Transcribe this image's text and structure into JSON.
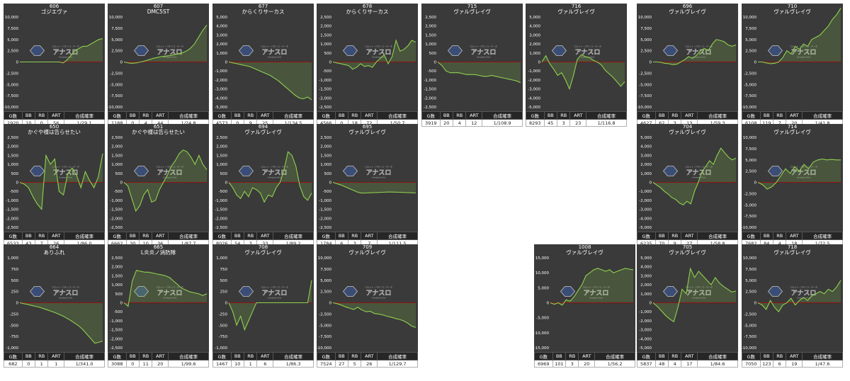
{
  "stats_header": [
    "G数",
    "BB",
    "RB",
    "ART",
    "合成確率"
  ],
  "colors": {
    "line": "#8fd14f",
    "fill": "rgba(143,209,79,0.18)",
    "zero": "#b00000",
    "panel": "#3a3a3a"
  },
  "watermark": {
    "top": "スロット・パチンコ・データ",
    "main": "アナスロ",
    "sub": "Analysis Slot"
  },
  "chart_data": [
    {
      "type": "line",
      "machine_no": "606",
      "title": "ゴジエヴァ",
      "yticks": [
        "10,000",
        "7,500",
        "5,000",
        "2,500",
        "0",
        "-2,500",
        "-5,000",
        "-7,500",
        "-10,000"
      ],
      "ylim": [
        -10000,
        10000
      ],
      "values": [
        0,
        0,
        0,
        0,
        0,
        0,
        0,
        0,
        0,
        0,
        0,
        -200,
        500,
        1500,
        2500,
        3000,
        3500,
        3500,
        4000,
        4500,
        5000,
        5200
      ],
      "stats": {
        "g": "1920",
        "bb": "10",
        "rb": "0",
        "art": "56",
        "rate": "1/29.1"
      }
    },
    {
      "type": "line",
      "machine_no": "607",
      "title": "DMC5ST",
      "yticks": [
        "10,000",
        "7,500",
        "5,000",
        "2,500",
        "0",
        "-2,500",
        "-5,000",
        "-7,500",
        "-10,000"
      ],
      "ylim": [
        -10000,
        10000
      ],
      "values": [
        0,
        -200,
        -300,
        -200,
        0,
        200,
        500,
        800,
        1000,
        1200,
        1300,
        1400,
        1600,
        1800,
        2000,
        2400,
        3000,
        4000,
        5500,
        7000,
        8200
      ],
      "stats": {
        "g": "1188",
        "bb": "0",
        "rb": "4",
        "art": "44",
        "rate": "1/24.8"
      }
    },
    {
      "type": "line",
      "machine_no": "677",
      "title": "からくりサーカス",
      "yticks": [
        "5,000",
        "4,000",
        "3,000",
        "2,000",
        "1,000",
        "0",
        "-1,000",
        "-2,000",
        "-3,000",
        "-4,000",
        "-5,000"
      ],
      "ylim": [
        -5000,
        5000
      ],
      "values": [
        0,
        -100,
        -200,
        -300,
        -400,
        -500,
        -700,
        -900,
        -1100,
        -1300,
        -1500,
        -1800,
        -2100,
        -2500,
        -2900,
        -3300,
        -3700,
        -4000,
        -4100,
        -3900,
        -4200
      ],
      "stats": {
        "g": "4573",
        "bb": "0",
        "rb": "9",
        "art": "25",
        "rate": "1/134.5"
      }
    },
    {
      "type": "line",
      "machine_no": "678",
      "title": "からくりサーカス",
      "yticks": [
        "2,500",
        "2,000",
        "1,500",
        "1,000",
        "500",
        "0",
        "-500",
        "-1,000",
        "-1,500",
        "-2,000",
        "-2,500"
      ],
      "ylim": [
        -2500,
        2500
      ],
      "values": [
        0,
        -50,
        -100,
        -150,
        -200,
        -400,
        -300,
        -100,
        -250,
        -200,
        -300,
        0,
        200,
        400,
        -100,
        300,
        1200,
        600,
        700,
        900,
        1200,
        1100
      ],
      "stats": {
        "g": "4566",
        "bb": "0",
        "rb": "18",
        "art": "72",
        "rate": "1/50.7"
      }
    },
    {
      "type": "line",
      "machine_no": "715",
      "title": "ヴァルヴレイヴ",
      "yticks": [
        "2,500",
        "2,000",
        "1,500",
        "1,000",
        "500",
        "0",
        "-500",
        "-1,000",
        "-1,500",
        "-2,000",
        "-2,500"
      ],
      "ylim": [
        -2500,
        2500
      ],
      "values": [
        0,
        -200,
        -500,
        -600,
        -600,
        -600,
        -650,
        -700,
        -700,
        -700,
        -750,
        -800,
        -800,
        -750,
        -800,
        -850,
        -900,
        -950,
        -1000,
        -1050,
        -1150
      ],
      "stats": {
        "g": "3919",
        "bb": "20",
        "rb": "4",
        "art": "12",
        "rate": "1/108.9"
      }
    },
    {
      "type": "line",
      "machine_no": "716",
      "title": "ヴァルヴレイヴ",
      "yticks": [
        "5,000",
        "4,000",
        "3,000",
        "2,000",
        "1,000",
        "0",
        "-1,000",
        "-2,000",
        "-3,000",
        "-4,000",
        "-5,000"
      ],
      "ylim": [
        -5000,
        5000
      ],
      "values": [
        0,
        700,
        -200,
        -800,
        -1500,
        -1200,
        -2000,
        -3000,
        -1500,
        300,
        800,
        600,
        500,
        200,
        0,
        -300,
        -900,
        -1300,
        -1700,
        -2200,
        -2700,
        -2200
      ],
      "stats": {
        "g": "8293",
        "bb": "45",
        "rb": "3",
        "art": "23",
        "rate": "1/116.8"
      }
    },
    {
      "type": "line",
      "machine_no": "696",
      "title": "ヴァルヴレイヴ",
      "yticks": [
        "10,000",
        "7,500",
        "5,000",
        "2,500",
        "0",
        "-2,500",
        "-5,000",
        "-7,500",
        "-10,000"
      ],
      "ylim": [
        -10000,
        10000
      ],
      "values": [
        0,
        0,
        -100,
        -300,
        -400,
        -600,
        -500,
        0,
        500,
        1200,
        800,
        1500,
        2500,
        3000,
        2500,
        4000,
        5000,
        4800,
        4500,
        3800,
        3500,
        3800
      ],
      "stats": {
        "g": "4627",
        "bb": "62",
        "rb": "3",
        "art": "13",
        "rate": "1/59.3"
      }
    },
    {
      "type": "line",
      "machine_no": "710",
      "title": "ヴァルヴレイヴ",
      "yticks": [
        "10,000",
        "7,500",
        "5,000",
        "2,500",
        "0",
        "-2,500",
        "-5,000",
        "-7,500",
        "-10,000"
      ],
      "ylim": [
        -10000,
        10000
      ],
      "values": [
        0,
        0,
        -200,
        -400,
        -300,
        0,
        1000,
        2500,
        1800,
        3500,
        2800,
        4000,
        3500,
        5000,
        5500,
        6000,
        7000,
        8000,
        9500,
        10500,
        12000
      ],
      "stats": {
        "g": "6108",
        "bb": "119",
        "rb": "7",
        "art": "20",
        "rate": "1/41.8"
      }
    },
    {
      "type": "line",
      "machine_no": "650",
      "title": "かぐや様は告らせたい",
      "yticks": [
        "2,500",
        "2,000",
        "1,500",
        "1,000",
        "500",
        "0",
        "-500",
        "-1,000",
        "-1,500",
        "-2,000",
        "-2,500"
      ],
      "ylim": [
        -2500,
        2500
      ],
      "values": [
        0,
        -100,
        -300,
        -800,
        -1200,
        -1500,
        1500,
        1000,
        1300,
        -500,
        -700,
        500,
        800,
        400,
        -300,
        600,
        100,
        -300,
        300,
        1600
      ],
      "stats": {
        "g": "6533",
        "bb": "43",
        "rb": "7",
        "art": "26",
        "rate": "1/86.0"
      }
    },
    {
      "type": "line",
      "machine_no": "651",
      "title": "かぐや様は告らせたい",
      "yticks": [
        "2,500",
        "2,000",
        "1,500",
        "1,000",
        "500",
        "0",
        "-500",
        "-1,000",
        "-1,500",
        "-2,000",
        "-2,500"
      ],
      "ylim": [
        -2500,
        2500
      ],
      "values": [
        0,
        -200,
        -900,
        -1600,
        -1300,
        -700,
        -400,
        -1100,
        -1000,
        -400,
        0,
        400,
        900,
        1200,
        1600,
        1800,
        1700,
        1400,
        1000,
        1500,
        1000,
        700
      ],
      "stats": {
        "g": "6662",
        "bb": "30",
        "rb": "10",
        "art": "36",
        "rate": "1/87.7"
      }
    },
    {
      "type": "line",
      "machine_no": "694",
      "title": "ヴァルヴレイヴ",
      "yticks": [
        "2,500",
        "2,000",
        "1,500",
        "1,000",
        "500",
        "0",
        "-500",
        "-1,000",
        "-1,500",
        "-2,000",
        "-2,500"
      ],
      "ylim": [
        -2500,
        2500
      ],
      "values": [
        0,
        -300,
        -700,
        -900,
        -500,
        -800,
        -300,
        -400,
        -600,
        -1100,
        -700,
        -800,
        -300,
        0,
        700,
        1700,
        1500,
        900,
        -200,
        -800,
        -1000,
        -600
      ],
      "stats": {
        "g": "8026",
        "bb": "54",
        "rb": "3",
        "art": "33",
        "rate": "1/89.2"
      }
    },
    {
      "type": "line",
      "machine_no": "695",
      "title": "ヴァルヴレイヴ",
      "yticks": [
        "2,500",
        "2,000",
        "1,500",
        "1,000",
        "500",
        "0",
        "-500",
        "-1,000",
        "-1,500",
        "-2,000",
        "-2,500"
      ],
      "ylim": [
        -2500,
        2500
      ],
      "values": [
        0,
        -80,
        -150,
        -250,
        -350,
        -450,
        -550,
        -600,
        -590,
        -580,
        -570,
        -560,
        -550,
        -540,
        -540,
        -545,
        -550,
        -560,
        -570,
        -580,
        -590
      ],
      "stats": {
        "g": "1784",
        "bb": "6",
        "rb": "3",
        "art": "7",
        "rate": "1/111.5"
      }
    },
    {
      "type": "line",
      "machine_no": "704",
      "title": "ヴァルヴレイヴ",
      "yticks": [
        "5,000",
        "4,000",
        "3,000",
        "2,000",
        "1,000",
        "0",
        "-1,000",
        "-2,000",
        "-3,000",
        "-4,000",
        "-5,000"
      ],
      "ylim": [
        -5000,
        5000
      ],
      "values": [
        0,
        -300,
        -600,
        -1000,
        -1300,
        -1700,
        -1900,
        -2300,
        -2500,
        -2100,
        -2400,
        -1000,
        0,
        1200,
        1800,
        2400,
        2000,
        3000,
        3800,
        3300,
        2800,
        2500,
        2700
      ],
      "stats": {
        "g": "6235",
        "bb": "70",
        "rb": "9",
        "art": "27",
        "rate": "1/58.8"
      }
    },
    {
      "type": "line",
      "machine_no": "714",
      "title": "ヴァルヴレイヴ",
      "yticks": [
        "10,000",
        "7,500",
        "5,000",
        "2,500",
        "0",
        "-2,500",
        "-5,000",
        "-7,500",
        "-10,000"
      ],
      "ylim": [
        -10000,
        10000
      ],
      "values": [
        0,
        -500,
        -1500,
        -1000,
        0,
        1500,
        3000,
        2000,
        3500,
        2500,
        4000,
        3000,
        4500,
        5000,
        5200,
        5000,
        5100,
        5000,
        5000
      ],
      "stats": {
        "g": "7682",
        "bb": "84",
        "rb": "4",
        "art": "18",
        "rate": "1/72.5"
      }
    },
    {
      "type": "line",
      "machine_no": "664",
      "title": "ありふれ",
      "yticks": [
        "1,000",
        "750",
        "500",
        "250",
        "0",
        "-250",
        "-500",
        "-750",
        "-1,000"
      ],
      "ylim": [
        -1000,
        1000
      ],
      "values": [
        0,
        -20,
        -40,
        -60,
        -80,
        -100,
        -130,
        -160,
        -190,
        -220,
        -260,
        -300,
        -350,
        -400,
        -460,
        -520,
        -600,
        -700,
        -800,
        -900,
        -880,
        -850
      ],
      "stats": {
        "g": "682",
        "bb": "0",
        "rb": "1",
        "art": "1",
        "rate": "1/341.0"
      }
    },
    {
      "type": "line",
      "machine_no": "665",
      "title": "L炎炎ノ消防隊",
      "yticks": [
        "2,500",
        "2,000",
        "1,500",
        "1,000",
        "500",
        "0",
        "-500",
        "-1,000",
        "-1,500",
        "-2,000",
        "-2,500"
      ],
      "ylim": [
        -2500,
        2500
      ],
      "values": [
        0,
        -200,
        1200,
        1800,
        1750,
        1700,
        1700,
        1650,
        1600,
        1550,
        1500,
        1400,
        1200,
        1000,
        800,
        700,
        600,
        550,
        500,
        400,
        500
      ],
      "stats": {
        "g": "3088",
        "bb": "0",
        "rb": "11",
        "art": "20",
        "rate": "1/99.6"
      }
    },
    {
      "type": "line",
      "machine_no": "708",
      "title": "ヴァルヴレイヴ",
      "yticks": [
        "1,000",
        "750",
        "500",
        "250",
        "0",
        "-250",
        "-500",
        "-750",
        "-1,000"
      ],
      "ylim": [
        -1000,
        1000
      ],
      "values": [
        0,
        -200,
        -500,
        -300,
        -600,
        -400,
        -200,
        0,
        0,
        0,
        0,
        0,
        0,
        0,
        0,
        0,
        0,
        0,
        0,
        0,
        0,
        500
      ],
      "stats": {
        "g": "1467",
        "bb": "10",
        "rb": "1",
        "art": "6",
        "rate": "1/86.3"
      }
    },
    {
      "type": "line",
      "machine_no": "709",
      "title": "ヴァルヴレイヴ",
      "yticks": [
        "10,000",
        "7,500",
        "5,000",
        "2,500",
        "0",
        "-2,500",
        "-5,000",
        "-7,500",
        "-10,000"
      ],
      "ylim": [
        -10000,
        10000
      ],
      "values": [
        0,
        -200,
        -500,
        -900,
        -1200,
        -1500,
        -1000,
        -1600,
        -2000,
        -1900,
        -2400,
        -2500,
        -2700,
        -3000,
        -3200,
        -3500,
        -3700,
        -4000,
        -4500,
        -5200,
        -5500
      ],
      "stats": {
        "g": "7524",
        "bb": "27",
        "rb": "5",
        "art": "26",
        "rate": "1/129.7"
      }
    },
    {
      "type": "line",
      "machine_no": "1008",
      "title": "ヴァルヴレイヴ",
      "yticks": [
        "15,000",
        "10,000",
        "5,000",
        "0",
        "-5,000",
        "-10,000",
        "-15,000"
      ],
      "ylim": [
        -15000,
        15000
      ],
      "values": [
        0,
        -500,
        0,
        -800,
        1000,
        500,
        2000,
        4000,
        6000,
        9000,
        10000,
        11000,
        11500,
        11000,
        10500,
        11000,
        10000,
        10500,
        11000,
        11500,
        11200,
        11000
      ],
      "stats": {
        "g": "6969",
        "bb": "101",
        "rb": "3",
        "art": "20",
        "rate": "1/56.2"
      }
    },
    {
      "type": "line",
      "machine_no": "705",
      "title": "ヴァルヴレイヴ",
      "yticks": [
        "5,000",
        "4,000",
        "3,000",
        "2,000",
        "1,000",
        "0",
        "-1,000",
        "-2,000",
        "-3,000",
        "-4,000",
        "-5,000"
      ],
      "ylim": [
        -5000,
        5000
      ],
      "values": [
        0,
        -400,
        -900,
        -1400,
        -1800,
        -2100,
        -500,
        1500,
        1000,
        3800,
        2800,
        3500,
        3000,
        2500,
        2000,
        2800,
        2200,
        1800,
        1500,
        1200,
        1300
      ],
      "stats": {
        "g": "5837",
        "bb": "48",
        "rb": "4",
        "art": "17",
        "rate": "1/84.6"
      }
    },
    {
      "type": "line",
      "machine_no": "718",
      "title": "ヴァルヴレイヴ",
      "yticks": [
        "10,000",
        "7,500",
        "5,000",
        "2,500",
        "0",
        "-2,500",
        "-5,000",
        "-7,500",
        "-10,000"
      ],
      "ylim": [
        -10000,
        10000
      ],
      "values": [
        0,
        -500,
        -1500,
        500,
        -1000,
        -2000,
        -500,
        0,
        1000,
        -500,
        500,
        1200,
        500,
        1500,
        2000,
        2500,
        2000,
        3000,
        2500,
        3500,
        5000
      ],
      "stats": {
        "g": "7050",
        "bb": "123",
        "rb": "6",
        "art": "19",
        "rate": "1/47.6"
      }
    }
  ]
}
